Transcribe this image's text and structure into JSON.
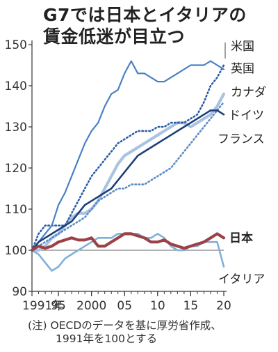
{
  "title": {
    "line1": "G7では日本とイタリアの",
    "line2": "賃金低迷が目立つ"
  },
  "note": {
    "line1": "(注) OECDのデータを基に厚労省作成、",
    "line2": "1991年を100とする"
  },
  "colors": {
    "us": "#4a80c4",
    "uk": "#2b5ea6",
    "canada": "#a9c3e2",
    "germany": "#1d3f78",
    "france": "#5b8bc6",
    "japan": "#9b4248",
    "italy": "#7fb0dc",
    "axis": "#333333",
    "grid": "#999999"
  },
  "chart_data": {
    "type": "line",
    "title": "G7では日本とイタリアの賃金低迷が目立つ",
    "x": [
      1991,
      1992,
      1993,
      1994,
      1995,
      1996,
      1997,
      1998,
      1999,
      2000,
      2001,
      2002,
      2003,
      2004,
      2005,
      2006,
      2007,
      2008,
      2009,
      2010,
      2011,
      2012,
      2013,
      2014,
      2015,
      2016,
      2017,
      2018,
      2019,
      2020
    ],
    "xlim": [
      1991,
      2020
    ],
    "ylim": [
      90,
      150
    ],
    "x_tick_labels": [
      {
        "x": 1991,
        "label": "1991年"
      },
      {
        "x": 1995,
        "label": "95"
      },
      {
        "x": 2000,
        "label": "2000"
      },
      {
        "x": 2005,
        "label": "05"
      },
      {
        "x": 2010,
        "label": "10"
      },
      {
        "x": 2015,
        "label": "15"
      },
      {
        "x": 2020,
        "label": "20"
      }
    ],
    "y_ticks": [
      90,
      100,
      110,
      120,
      130,
      140,
      150
    ],
    "reference_line": 100,
    "series": [
      {
        "key": "us",
        "name": "米国",
        "style": "solid-thin",
        "values": [
          100,
          102,
          104,
          106,
          111,
          114,
          118,
          122,
          126,
          129,
          131,
          135,
          138,
          139,
          143,
          146,
          143,
          143,
          142,
          141,
          141,
          142,
          143,
          144,
          145,
          145,
          145,
          146,
          145,
          144
        ]
      },
      {
        "key": "uk",
        "name": "英国",
        "style": "dotted",
        "values": [
          100,
          104,
          106,
          106,
          106,
          106,
          109,
          112,
          115,
          118,
          120,
          122,
          124,
          126,
          127,
          128,
          129,
          129,
          129,
          130,
          130,
          131,
          131,
          131,
          132,
          133,
          136,
          140,
          142,
          145
        ]
      },
      {
        "key": "canada",
        "name": "カナダ",
        "style": "solid-thick",
        "values": [
          100,
          100,
          101,
          103,
          104,
          106,
          108,
          109,
          109,
          110,
          112,
          115,
          118,
          121,
          123,
          124,
          125,
          126,
          127,
          128,
          129,
          130,
          131,
          131,
          130,
          131,
          132,
          133,
          135,
          138
        ]
      },
      {
        "key": "germany",
        "name": "ドイツ",
        "style": "solid-medium",
        "values": [
          100,
          102,
          103,
          104,
          105,
          106,
          107,
          109,
          111,
          112,
          113,
          114,
          115,
          117,
          119,
          121,
          123,
          124,
          125,
          126,
          127,
          128,
          129,
          130,
          131,
          132,
          133,
          134,
          134,
          133
        ]
      },
      {
        "key": "france",
        "name": "フランス",
        "style": "dotted",
        "values": [
          100,
          101,
          102,
          103,
          104,
          105,
          106,
          107,
          108,
          110,
          112,
          113,
          114,
          115,
          115,
          116,
          116,
          116,
          117,
          118,
          119,
          120,
          122,
          124,
          126,
          128,
          130,
          132,
          134,
          136
        ]
      },
      {
        "key": "japan",
        "name": "日本",
        "style": "solid-thick",
        "values": [
          100,
          101,
          100.5,
          101,
          102,
          102.5,
          103,
          102.5,
          102.5,
          103,
          101,
          101,
          102,
          103,
          104,
          104,
          103.5,
          103,
          102,
          102,
          102.5,
          101.5,
          101,
          100.5,
          101,
          101.5,
          102,
          103,
          104,
          103
        ]
      },
      {
        "key": "italy",
        "name": "イタリア",
        "style": "solid-medium",
        "values": [
          100,
          99,
          97,
          95,
          96,
          98,
          99,
          100,
          101,
          102,
          103,
          103,
          103,
          104,
          104,
          104,
          104,
          103,
          103,
          104,
          103,
          101,
          100,
          100,
          101,
          101,
          102,
          102,
          102,
          96
        ]
      }
    ]
  }
}
